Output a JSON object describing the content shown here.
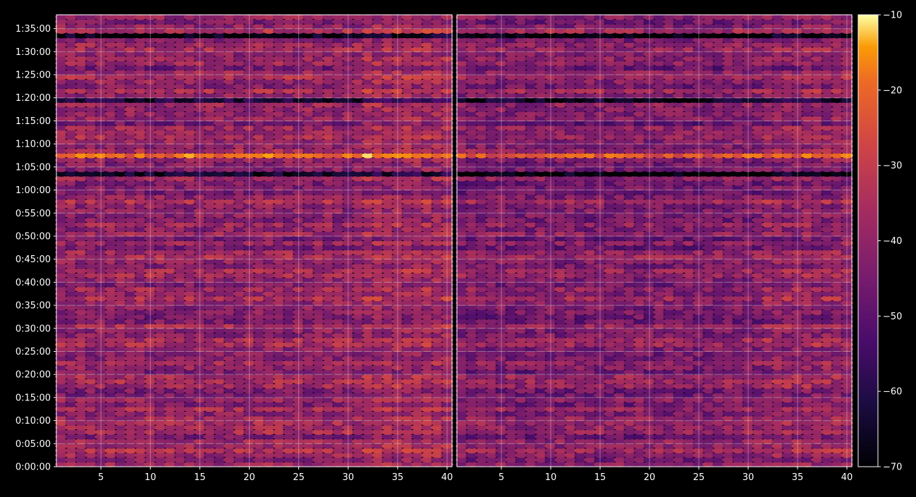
{
  "chart_data": {
    "type": "heatmap",
    "title": "",
    "xlabel": "",
    "ylabel": "",
    "panels": [
      {
        "name": "",
        "x_range": [
          1,
          40
        ],
        "x_ticks": [
          "5",
          "10",
          "15",
          "20",
          "25",
          "30",
          "35",
          "40"
        ]
      },
      {
        "name": "",
        "x_range": [
          1,
          40
        ],
        "x_ticks": [
          "5",
          "10",
          "15",
          "20",
          "25",
          "30",
          "35",
          "40"
        ]
      }
    ],
    "x_tick_values": [
      5,
      10,
      15,
      20,
      25,
      30,
      35,
      40
    ],
    "y_range_seconds": [
      0,
      5880
    ],
    "y_tick_values_seconds": [
      0,
      300,
      600,
      900,
      1200,
      1500,
      1800,
      2100,
      2400,
      2700,
      3000,
      3300,
      3600,
      3900,
      4200,
      4500,
      4800,
      5100,
      5400,
      5700
    ],
    "y_tick_labels": [
      "0:00:00",
      "0:05:00",
      "0:10:00",
      "0:15:00",
      "0:20:00",
      "0:25:00",
      "0:30:00",
      "0:35:00",
      "0:40:00",
      "0:45:00",
      "0:50:00",
      "0:55:00",
      "1:00:00",
      "1:05:00",
      "1:10:00",
      "1:15:00",
      "1:20:00",
      "1:25:00",
      "1:30:00",
      "1:35:00"
    ],
    "colorbar": {
      "colormap": "inferno",
      "range": [
        -70,
        -10
      ],
      "tick_values": [
        -10,
        -20,
        -30,
        -40,
        -50,
        -60,
        -70
      ],
      "tick_labels": [
        "−10",
        "−20",
        "−30",
        "−40",
        "−50",
        "−60",
        "−70"
      ]
    },
    "grid": true,
    "background": "#000000",
    "grid_color": "#ffffff",
    "notable_rows": [
      {
        "time_seconds": 4050,
        "value": -20,
        "note": "bright band"
      },
      {
        "time_seconds": 3800,
        "value": -65,
        "note": "dark band"
      },
      {
        "time_seconds": 5620,
        "value": -68,
        "note": "dark top band"
      },
      {
        "time_seconds": 4790,
        "value": -62,
        "note": "dark band"
      }
    ]
  }
}
